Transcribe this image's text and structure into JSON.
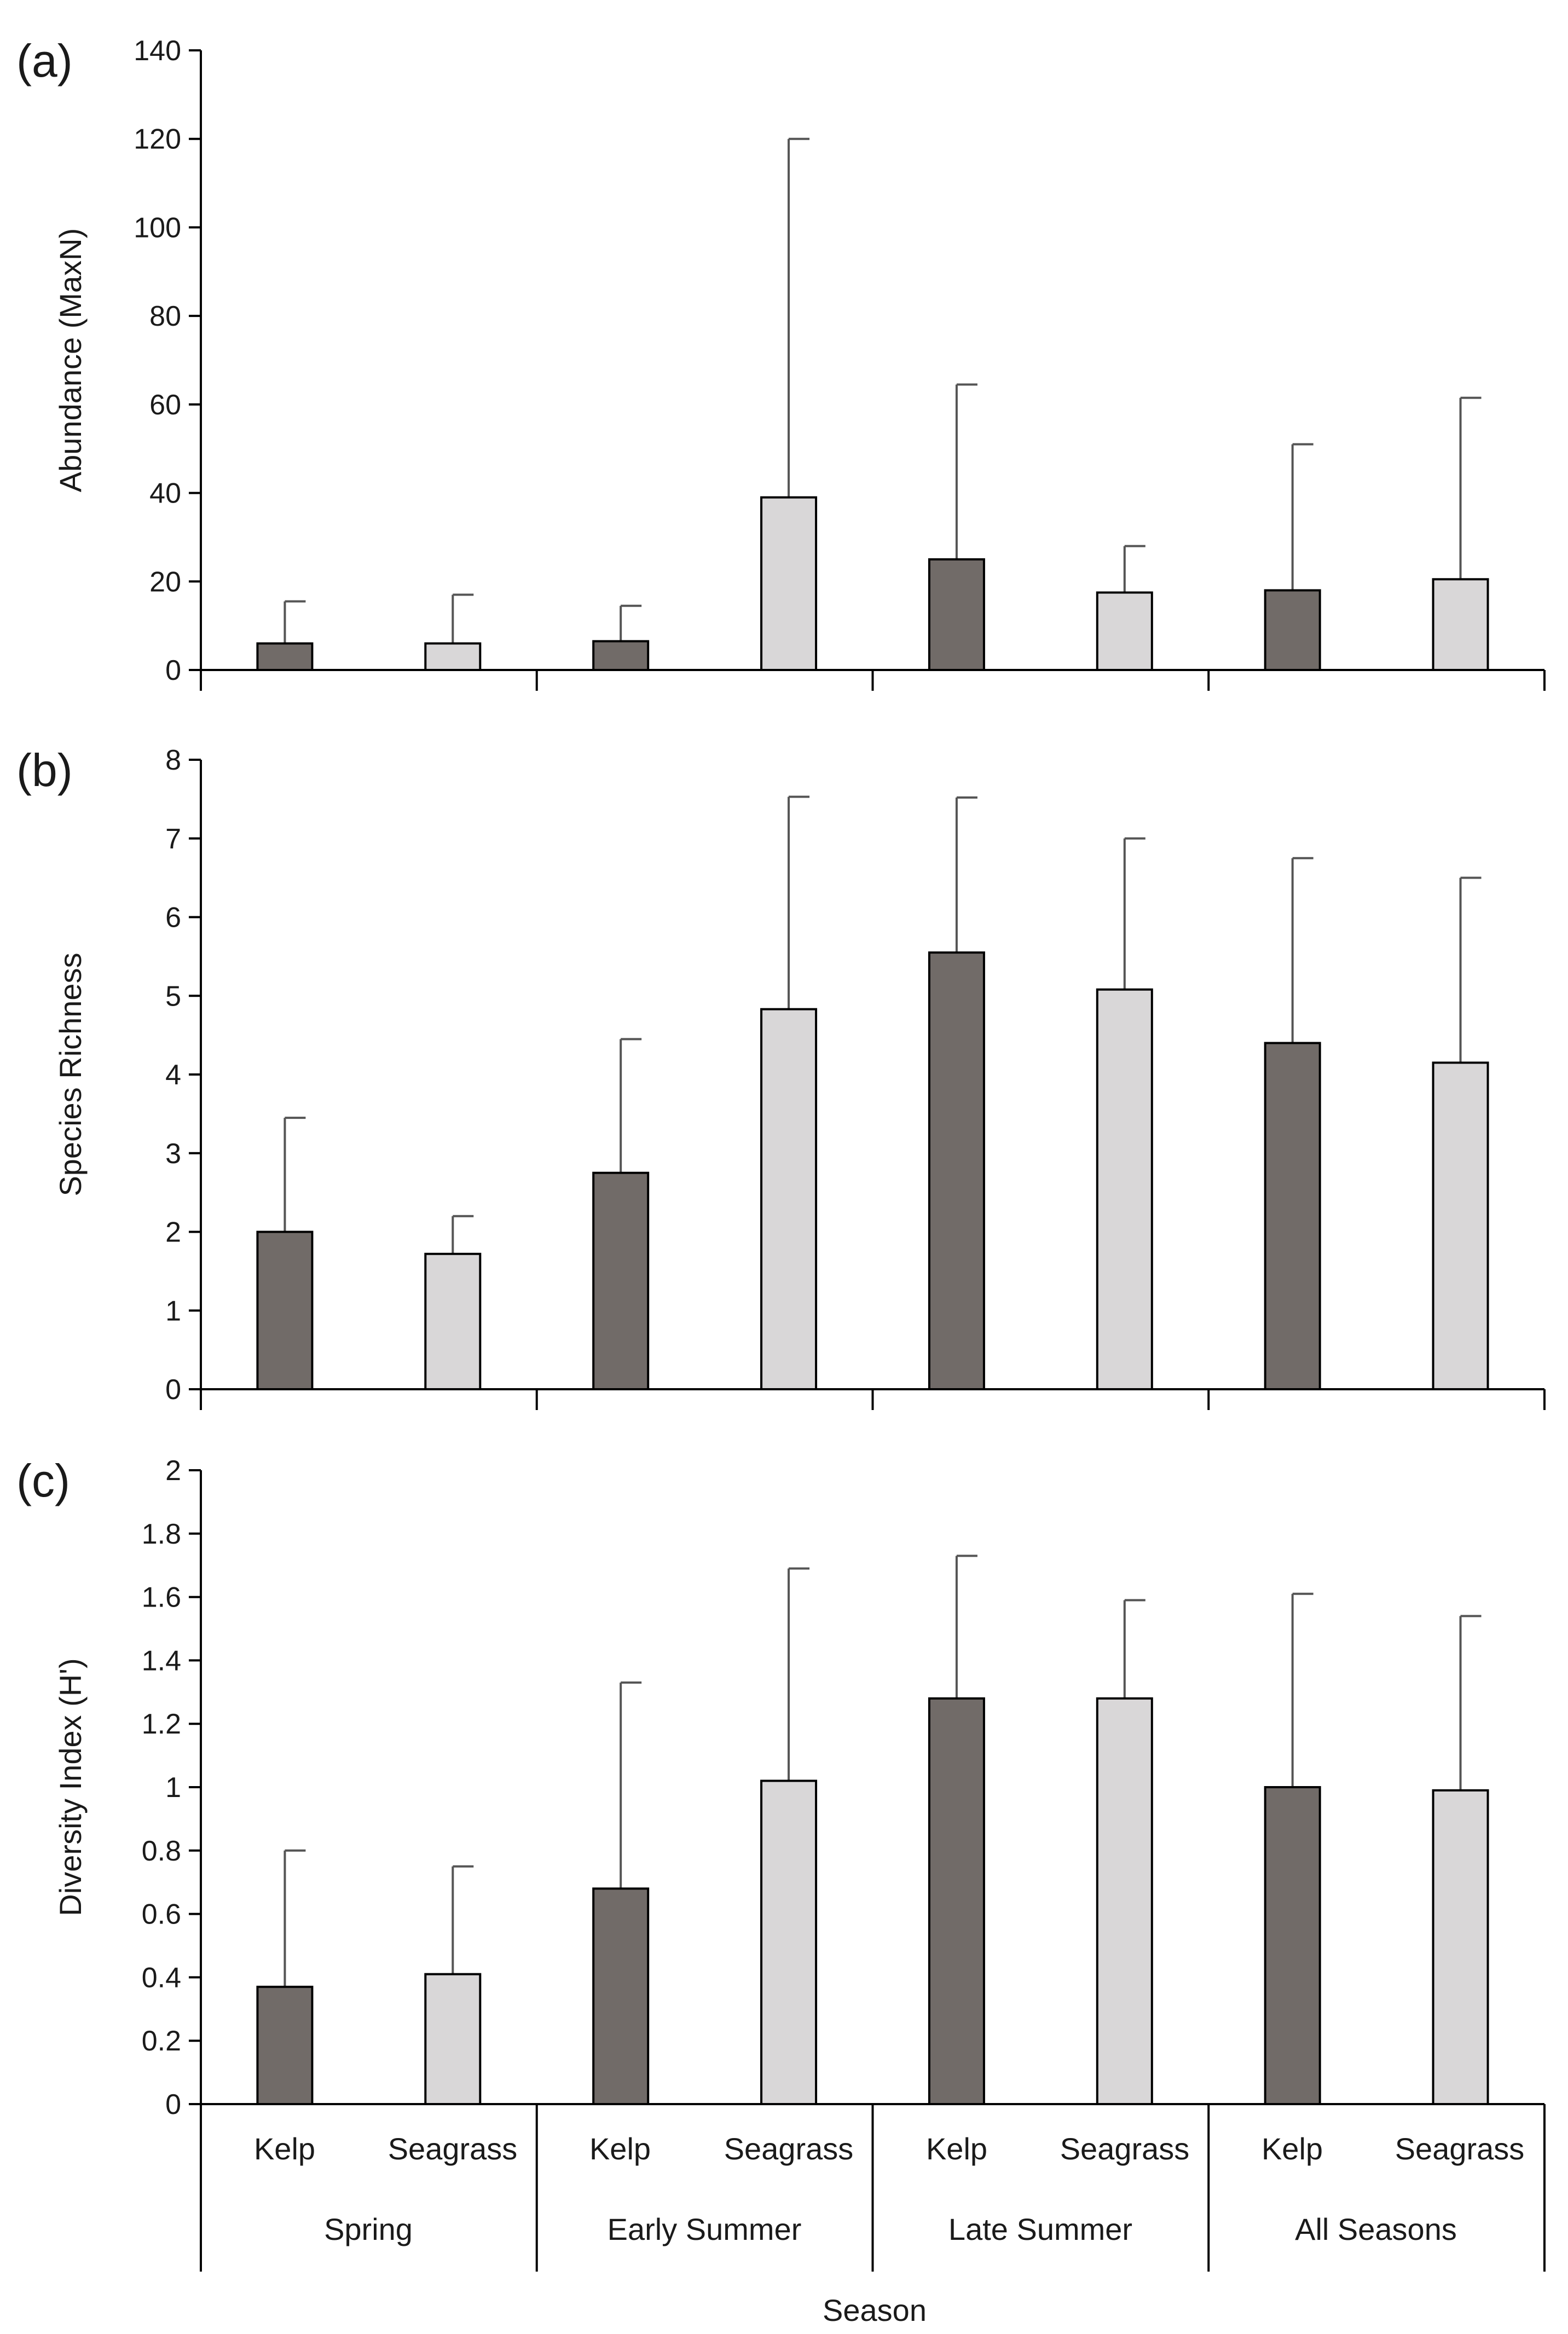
{
  "colors": {
    "kelp": "#716b68",
    "seagrass": "#d9d7d8",
    "axis": "#000000",
    "errorbar": "#555555"
  },
  "chart_data": [
    {
      "panel": "(a)",
      "type": "bar",
      "ylabel": "Abundance (MaxN)",
      "ylim": [
        0,
        140
      ],
      "yticks": [
        "0",
        "20",
        "40",
        "60",
        "80",
        "100",
        "120",
        "140"
      ],
      "categories": [
        "Spring",
        "Early Summer",
        "Late Summer",
        "All Seasons"
      ],
      "series": [
        {
          "name": "Kelp",
          "values": [
            6,
            6.5,
            25,
            18
          ],
          "errors": [
            9.5,
            8,
            39.5,
            33
          ]
        },
        {
          "name": "Seagrass",
          "values": [
            6,
            39,
            17.5,
            20.5
          ],
          "errors": [
            11,
            81,
            10.5,
            41
          ]
        }
      ]
    },
    {
      "panel": "(b)",
      "type": "bar",
      "ylabel": "Species Richness",
      "ylim": [
        0,
        8
      ],
      "yticks": [
        "0",
        "1",
        "2",
        "3",
        "4",
        "5",
        "6",
        "7",
        "8"
      ],
      "categories": [
        "Spring",
        "Early Summer",
        "Late Summer",
        "All Seasons"
      ],
      "series": [
        {
          "name": "Kelp",
          "values": [
            2.0,
            2.75,
            5.55,
            4.4
          ],
          "errors": [
            1.45,
            1.7,
            1.97,
            2.35
          ]
        },
        {
          "name": "Seagrass",
          "values": [
            1.72,
            4.83,
            5.08,
            4.15
          ],
          "errors": [
            0.48,
            2.7,
            1.92,
            2.35
          ]
        }
      ]
    },
    {
      "panel": "(c)",
      "type": "bar",
      "ylabel": "Diversity Index (H')",
      "xlabel": "Season",
      "ylim": [
        0,
        2
      ],
      "yticks": [
        "0",
        "0.2",
        "0.4",
        "0.6",
        "0.8",
        "1",
        "1.2",
        "1.4",
        "1.6",
        "1.8",
        "2"
      ],
      "categories": [
        "Spring",
        "Early Summer",
        "Late Summer",
        "All Seasons"
      ],
      "series": [
        {
          "name": "Kelp",
          "values": [
            0.37,
            0.68,
            1.28,
            1.0
          ],
          "errors": [
            0.43,
            0.65,
            0.45,
            0.61
          ]
        },
        {
          "name": "Seagrass",
          "values": [
            0.41,
            1.02,
            1.28,
            0.99
          ],
          "errors": [
            0.34,
            0.67,
            0.31,
            0.55
          ]
        }
      ]
    }
  ],
  "x_axis": {
    "groups": [
      "Spring",
      "Early Summer",
      "Late Summer",
      "All Seasons"
    ],
    "sublabels": [
      "Kelp",
      "Seagrass",
      "Kelp",
      "Seagrass",
      "Kelp",
      "Seagrass",
      "Kelp",
      "Seagrass"
    ],
    "title": "Season"
  }
}
